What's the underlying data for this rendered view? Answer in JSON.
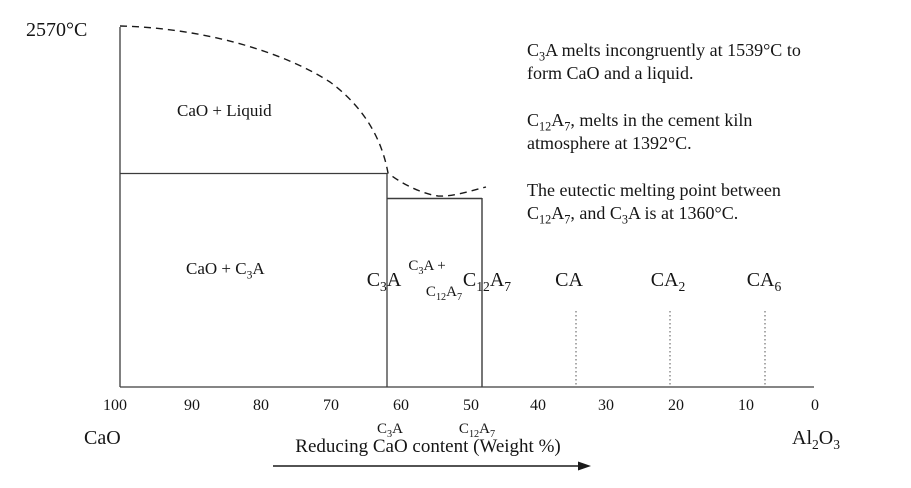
{
  "diagram": {
    "temp_label": "2570°C",
    "regions": {
      "cao_liquid": "CaO + Liquid",
      "cao_c3a": "CaO + C{3}A",
      "two_phase_line1": "C{3}A +",
      "two_phase_line2": "C{12}A{7}"
    },
    "phase_labels": {
      "c3a": "C{3}A",
      "c12a7": "C{12}A{7}",
      "ca": "CA",
      "ca2": "CA{2}",
      "ca6": "CA{6}"
    },
    "axis": {
      "ticks": [
        "100",
        "90",
        "80",
        "70",
        "60",
        "50",
        "40",
        "30",
        "20",
        "10",
        "0"
      ],
      "left_endmember": "CaO",
      "right_endmember": "Al{2}O{3}",
      "sub_label_c3a": "C{3}A",
      "sub_label_c12a7": "C{12}A{7}",
      "caption": "Reducing CaO content (Weight %)"
    },
    "annotations": [
      {
        "lines": [
          "C{3}A melts incongruently at 1539°C to",
          "form CaO and a liquid."
        ]
      },
      {
        "lines": [
          "C{12}A{7}, melts in the cement kiln",
          "atmosphere at 1392°C."
        ]
      },
      {
        "lines": [
          "The eutectic melting point between",
          "C{12}A{7}, and C{3}A is at 1360°C."
        ]
      }
    ]
  },
  "chart_data": {
    "type": "line",
    "xlabel": "Reducing CaO content (Weight %)",
    "x_ticks": [
      100,
      90,
      80,
      70,
      60,
      50,
      40,
      30,
      20,
      10,
      0
    ],
    "x_axis_endpoints": {
      "left": "CaO",
      "right": "Al2O3"
    },
    "regions": [
      "CaO + Liquid",
      "CaO + C3A",
      "C3A + C12A7"
    ],
    "compound_positions_pct_cao": {
      "C3A": 61,
      "C12A7": 48,
      "CA": 34,
      "CA2": 21,
      "CA6": 7
    },
    "key_temperatures_c": {
      "CaO_melting": 2570,
      "C3A_incongruent_melting": 1539,
      "C12A7_melting": 1392,
      "C3A_C12A7_eutectic": 1360
    },
    "liquidus_dashed": {
      "from": "100% CaO at 2570°C",
      "through": "C3A composition (~61% CaO) at 1539°C",
      "eutectic_dip_pct_cao": 53,
      "to": "C12A7 composition (~48% CaO) at 1392°C"
    }
  }
}
